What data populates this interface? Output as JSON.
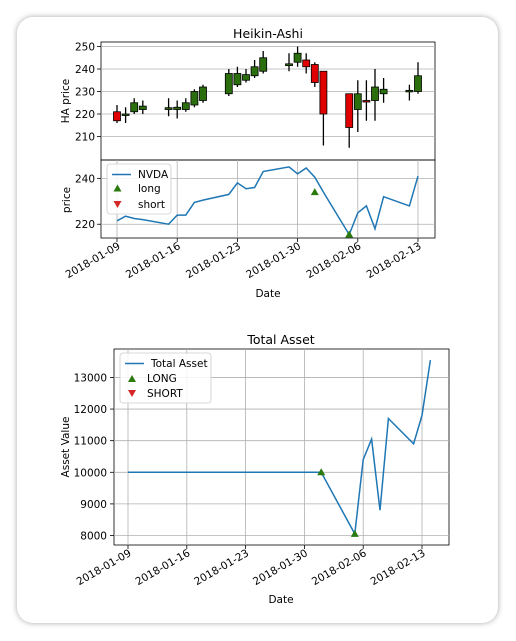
{
  "chart_data": [
    {
      "type": "candlestick",
      "title": "Heikin-Ashi",
      "ylabel": "HA price",
      "ylim": [
        200,
        252
      ],
      "yticks": [
        210,
        220,
        230,
        240,
        250
      ],
      "grid": true,
      "candles": [
        {
          "date": "2018-01-09",
          "open": 221,
          "close": 217,
          "high": 224,
          "low": 216
        },
        {
          "date": "2018-01-10",
          "open": 219.5,
          "close": 220,
          "high": 223,
          "low": 216
        },
        {
          "date": "2018-01-11",
          "open": 221,
          "close": 225,
          "high": 227,
          "low": 220
        },
        {
          "date": "2018-01-12",
          "open": 222,
          "close": 223.5,
          "high": 226,
          "low": 220
        },
        {
          "date": "2018-01-15",
          "open": 222,
          "close": 222.8,
          "high": 227,
          "low": 219
        },
        {
          "date": "2018-01-16",
          "open": 222,
          "close": 223,
          "high": 226,
          "low": 218
        },
        {
          "date": "2018-01-17",
          "open": 222,
          "close": 225,
          "high": 227,
          "low": 221
        },
        {
          "date": "2018-01-18",
          "open": 224,
          "close": 230,
          "high": 231,
          "low": 223
        },
        {
          "date": "2018-01-19",
          "open": 226,
          "close": 232,
          "high": 233,
          "low": 225
        },
        {
          "date": "2018-01-22",
          "open": 229,
          "close": 238,
          "high": 240,
          "low": 228
        },
        {
          "date": "2018-01-23",
          "open": 233,
          "close": 238,
          "high": 241,
          "low": 232
        },
        {
          "date": "2018-01-24",
          "open": 235,
          "close": 237.5,
          "high": 240,
          "low": 234
        },
        {
          "date": "2018-01-25",
          "open": 237,
          "close": 241,
          "high": 244,
          "low": 236
        },
        {
          "date": "2018-01-26",
          "open": 239,
          "close": 245,
          "high": 248,
          "low": 238
        },
        {
          "date": "2018-01-29",
          "open": 241.5,
          "close": 242.3,
          "high": 247,
          "low": 239
        },
        {
          "date": "2018-01-30",
          "open": 243,
          "close": 247,
          "high": 250,
          "low": 241
        },
        {
          "date": "2018-01-31",
          "open": 244,
          "close": 241,
          "high": 247,
          "low": 238
        },
        {
          "date": "2018-02-01",
          "open": 242,
          "close": 234,
          "high": 243,
          "low": 232
        },
        {
          "date": "2018-02-02",
          "open": 239,
          "close": 220,
          "high": 239,
          "low": 206
        },
        {
          "date": "2018-02-05",
          "open": 229,
          "close": 214,
          "high": 229,
          "low": 205
        },
        {
          "date": "2018-02-06",
          "open": 222,
          "close": 229,
          "high": 235,
          "low": 212
        },
        {
          "date": "2018-02-07",
          "open": 226,
          "close": 225.5,
          "high": 235,
          "low": 217
        },
        {
          "date": "2018-02-08",
          "open": 226,
          "close": 232,
          "high": 240,
          "low": 217
        },
        {
          "date": "2018-02-09",
          "open": 229,
          "close": 231,
          "high": 236,
          "low": 225
        },
        {
          "date": "2018-02-12",
          "open": 230,
          "close": 230.5,
          "high": 233,
          "low": 226
        },
        {
          "date": "2018-02-13",
          "open": 230,
          "close": 237,
          "high": 243,
          "low": 229
        }
      ],
      "up_color": "#2a6e0e",
      "down_color": "#e00000"
    },
    {
      "type": "line",
      "ylabel": "price",
      "ylim": [
        214,
        248
      ],
      "yticks": [
        220,
        240
      ],
      "xticks": [
        "2018-01-09",
        "2018-01-16",
        "2018-01-23",
        "2018-01-30",
        "2018-02-06",
        "2018-02-13"
      ],
      "xlabel": "Date",
      "grid": true,
      "legend": "top-left",
      "series": [
        {
          "name": "NVDA",
          "color": "#1f77b4",
          "x": [
            "2018-01-09",
            "2018-01-10",
            "2018-01-11",
            "2018-01-12",
            "2018-01-15",
            "2018-01-16",
            "2018-01-17",
            "2018-01-18",
            "2018-01-19",
            "2018-01-22",
            "2018-01-23",
            "2018-01-24",
            "2018-01-25",
            "2018-01-26",
            "2018-01-29",
            "2018-01-30",
            "2018-01-31",
            "2018-02-01",
            "2018-02-02",
            "2018-02-05",
            "2018-02-06",
            "2018-02-07",
            "2018-02-08",
            "2018-02-09",
            "2018-02-12",
            "2018-02-13"
          ],
          "y": [
            221.5,
            223.5,
            222.5,
            222,
            220,
            224,
            224,
            229.5,
            230.5,
            233,
            238,
            235.5,
            236,
            243,
            245,
            242,
            244.5,
            240.5,
            234,
            215.5,
            225,
            228,
            218,
            232,
            228,
            241
          ]
        }
      ],
      "markers": [
        {
          "name": "long",
          "color": "#2a7a0e",
          "shape": "up",
          "x": [
            "2018-02-01",
            "2018-02-05"
          ],
          "y": [
            234,
            215.5
          ]
        },
        {
          "name": "short",
          "color": "#d62728",
          "shape": "down",
          "x": [],
          "y": []
        }
      ]
    },
    {
      "type": "line",
      "title": "Total Asset",
      "xlabel": "Date",
      "ylabel": "Asset Value",
      "ylim": [
        7700,
        13900
      ],
      "yticks": [
        8000,
        9000,
        10000,
        11000,
        12000,
        13000
      ],
      "xticks": [
        "2018-01-09",
        "2018-01-16",
        "2018-01-23",
        "2018-01-30",
        "2018-02-06",
        "2018-02-13"
      ],
      "grid": true,
      "legend": "top-left",
      "series": [
        {
          "name": "Total Asset",
          "color": "#1f77b4",
          "x": [
            "2018-01-09",
            "2018-02-01",
            "2018-02-05",
            "2018-02-06",
            "2018-02-07",
            "2018-02-08",
            "2018-02-09",
            "2018-02-12",
            "2018-02-13",
            "2018-02-14"
          ],
          "y": [
            10000,
            10000,
            8050,
            10400,
            11050,
            8800,
            11700,
            10900,
            11800,
            13550
          ]
        }
      ],
      "markers": [
        {
          "name": "LONG",
          "color": "#2a7a0e",
          "shape": "up",
          "x": [
            "2018-02-01",
            "2018-02-05"
          ],
          "y": [
            10000,
            8050
          ]
        },
        {
          "name": "SHORT",
          "color": "#d62728",
          "shape": "down",
          "x": [],
          "y": []
        }
      ]
    }
  ]
}
